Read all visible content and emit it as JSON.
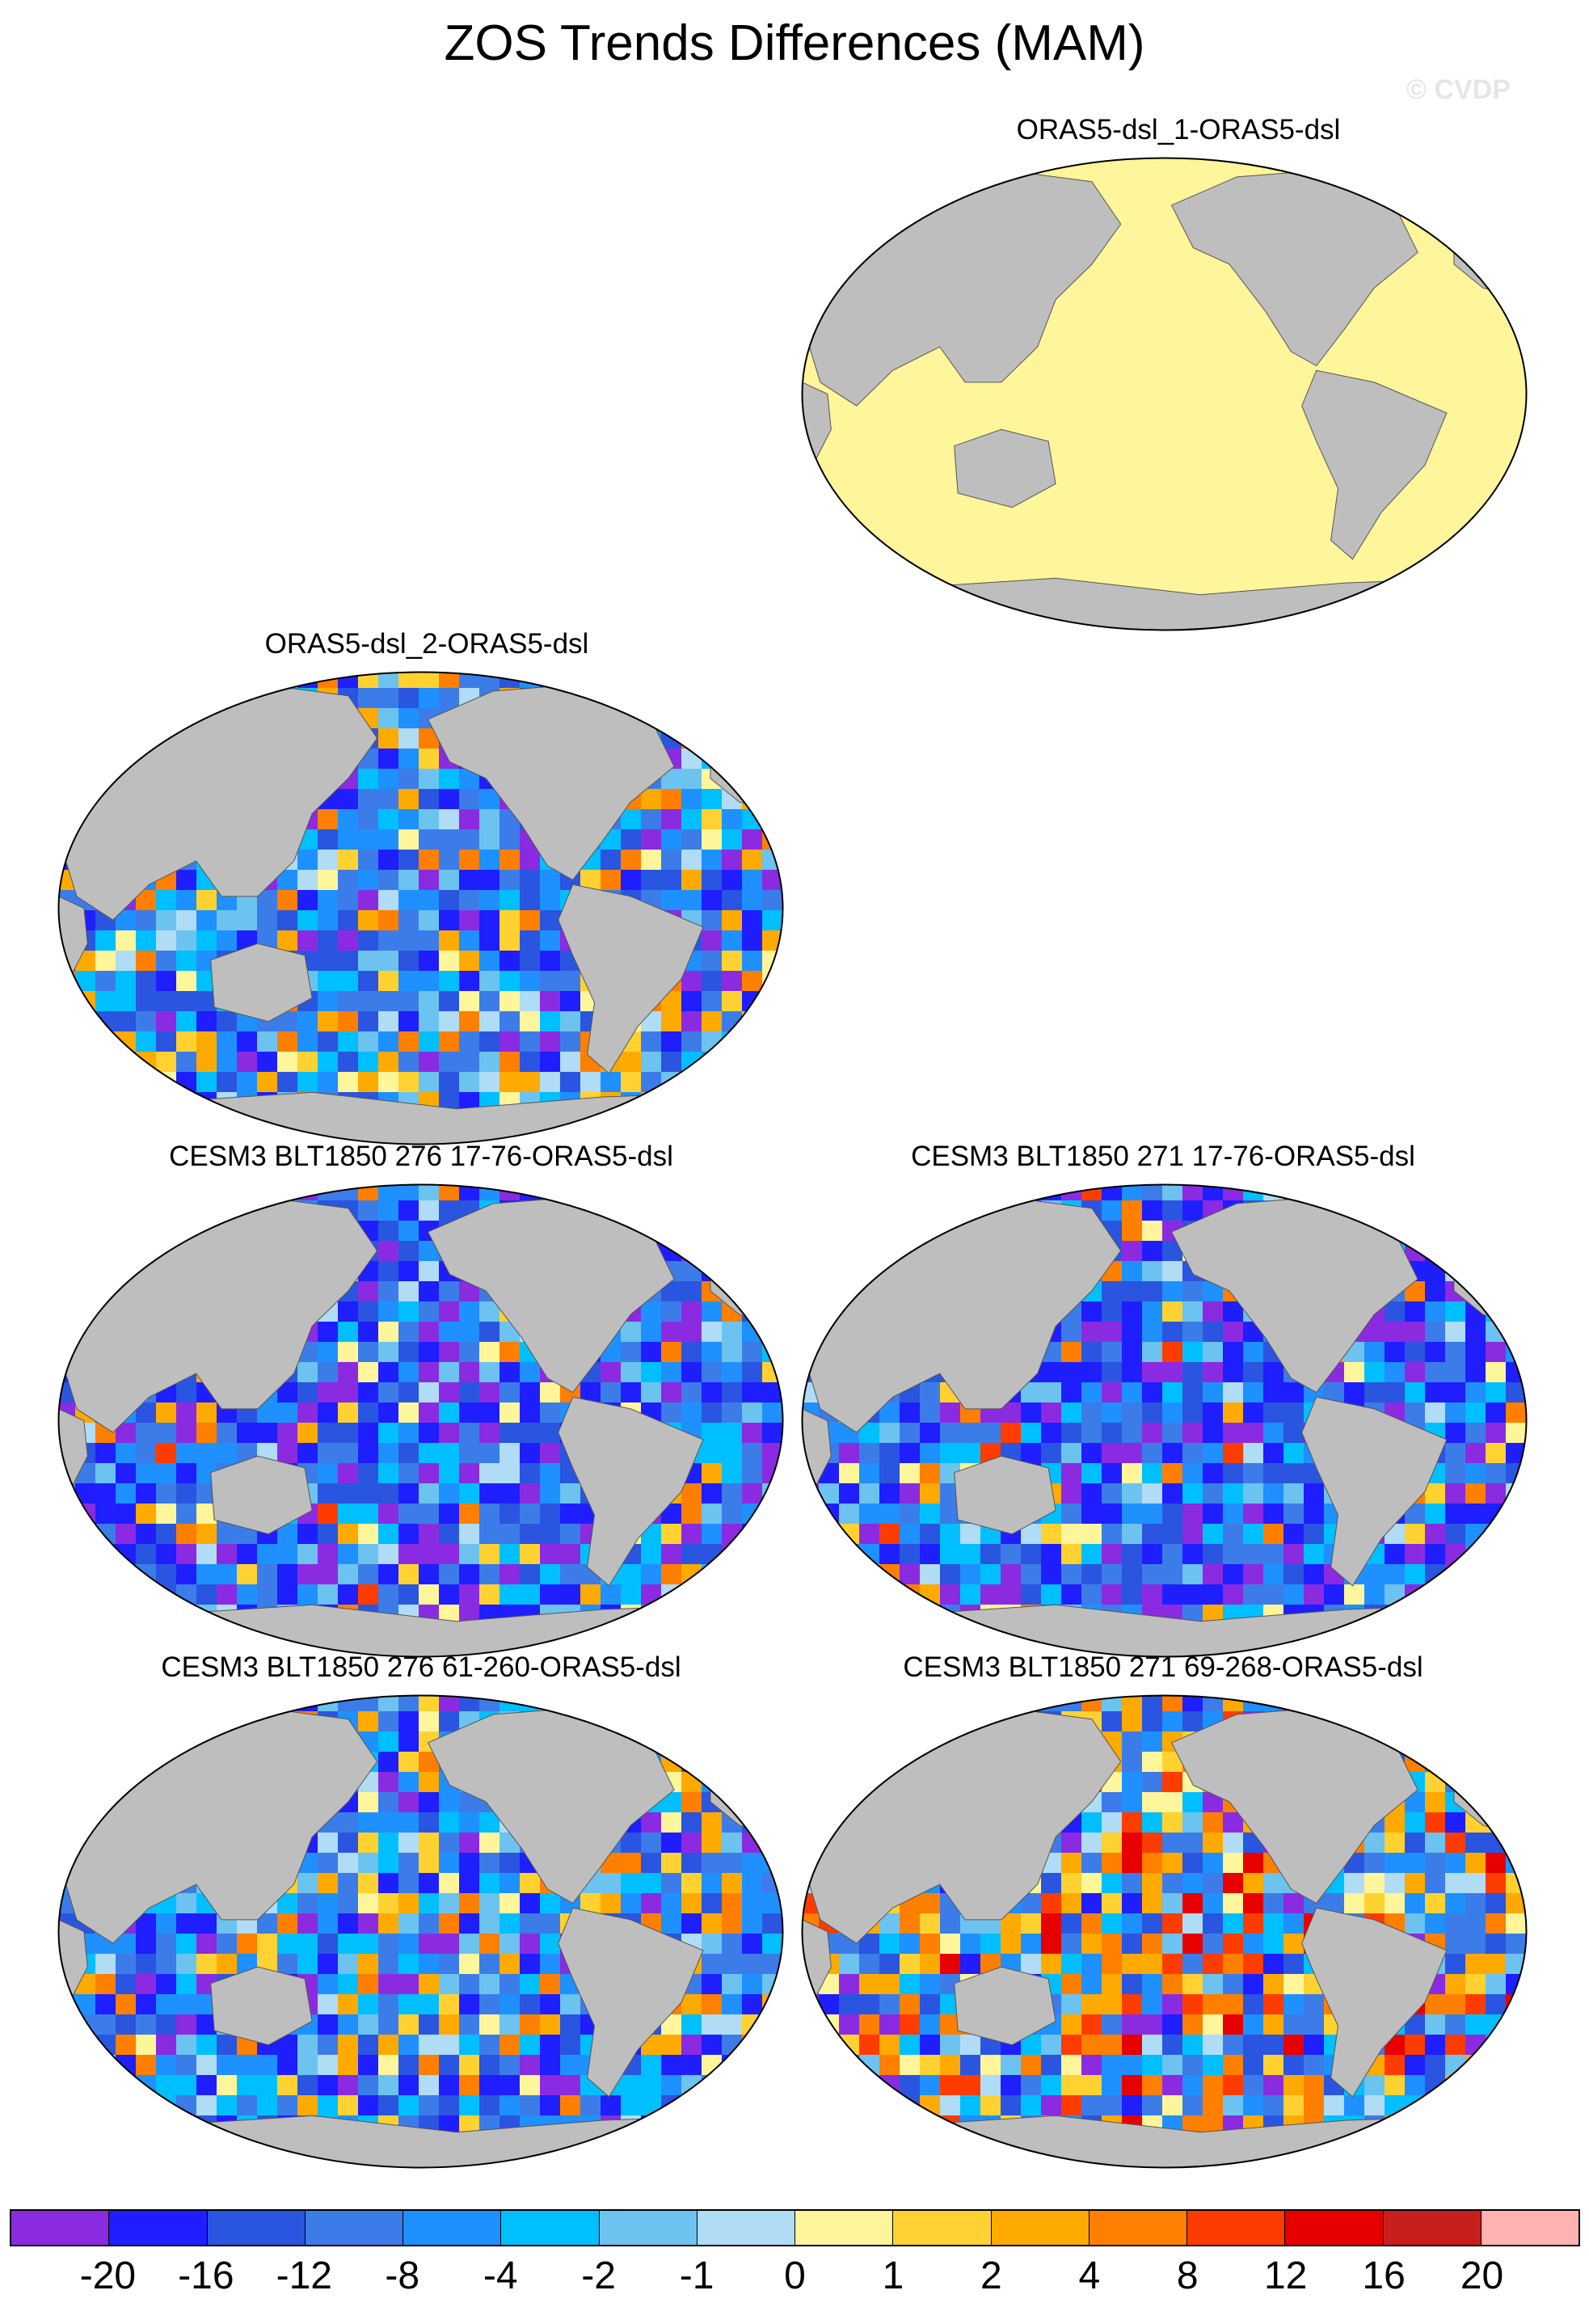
{
  "title": "ZOS Trends Differences (MAM)",
  "watermark": "© CVDP",
  "panels": [
    {
      "label": "ORAS5-dsl_1-ORAS5-dsl",
      "fill": "uniform-zero"
    },
    {
      "label": "ORAS5-dsl_2-ORAS5-dsl",
      "fill": "mixed"
    },
    {
      "label": "CESM3 BLT1850 276 17-76-ORAS5-dsl",
      "fill": "mostly-negative"
    },
    {
      "label": "CESM3 BLT1850 271 17-76-ORAS5-dsl",
      "fill": "mostly-negative"
    },
    {
      "label": "CESM3 BLT1850 276 61-260-ORAS5-dsl",
      "fill": "mixed"
    },
    {
      "label": "CESM3 BLT1850 271 69-268-ORAS5-dsl",
      "fill": "mostly-positive"
    }
  ],
  "colorbar": {
    "colors": [
      "#8a2be2",
      "#1e1eff",
      "#2a55e0",
      "#3c7ce8",
      "#1e90ff",
      "#00bfff",
      "#6cc3f0",
      "#b0dcf5",
      "#fff59a",
      "#ffd232",
      "#ffaa00",
      "#ff7f00",
      "#ff3c00",
      "#e60000",
      "#c81e1e",
      "#ffb2b2"
    ],
    "tick_labels": [
      "-20",
      "-16",
      "-12",
      "-8",
      "-4",
      "-2",
      "-1",
      "0",
      "1",
      "2",
      "4",
      "8",
      "12",
      "16",
      "20"
    ]
  },
  "legend_colors": {
    "land": "#bebebe",
    "zero": "#fff59a"
  }
}
